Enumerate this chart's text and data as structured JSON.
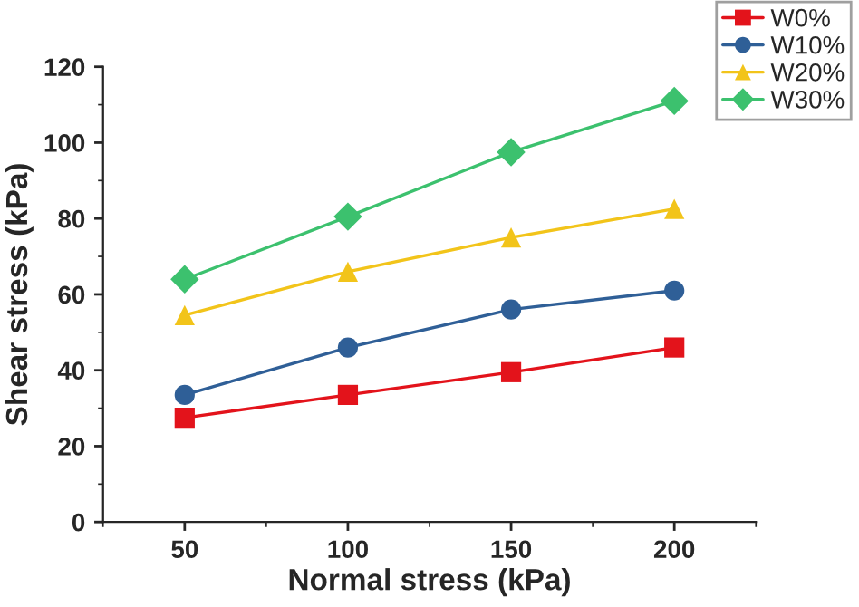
{
  "chart_data": {
    "type": "line",
    "xlabel": "Normal stress (kPa)",
    "ylabel": "Shear stress (kPa)",
    "x": [
      50,
      100,
      150,
      200
    ],
    "series": [
      {
        "name": "W0%",
        "color": "#e3131b",
        "marker": "square",
        "values": [
          27.5,
          33.5,
          39.5,
          46
        ]
      },
      {
        "name": "W10%",
        "color": "#2f5f97",
        "marker": "circle",
        "values": [
          33.5,
          46,
          56,
          61
        ]
      },
      {
        "name": "W20%",
        "color": "#f2c41a",
        "marker": "triangle",
        "values": [
          54.5,
          66,
          75,
          82.5
        ]
      },
      {
        "name": "W30%",
        "color": "#3cc16e",
        "marker": "diamond",
        "values": [
          64,
          80.5,
          97.5,
          111
        ]
      }
    ],
    "xlim": [
      25,
      225
    ],
    "xticks": [
      50,
      100,
      150,
      200
    ],
    "ylim": [
      0,
      120
    ],
    "yticks": [
      0,
      20,
      40,
      60,
      80,
      100,
      120
    ],
    "grid": false,
    "legend": "top right",
    "line_style": "solid"
  }
}
